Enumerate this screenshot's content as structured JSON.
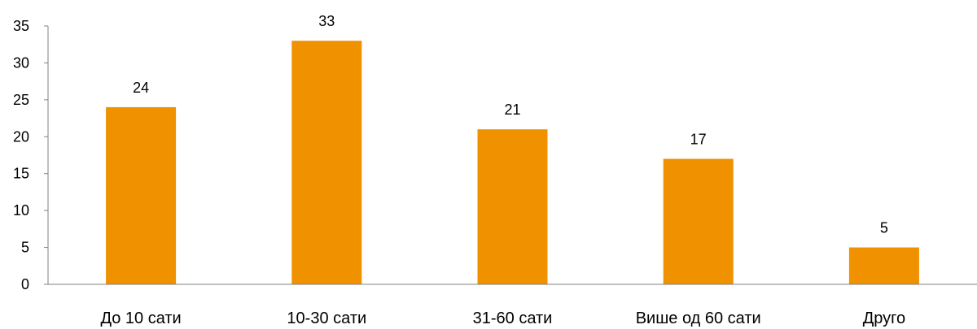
{
  "chart_data": {
    "type": "bar",
    "categories": [
      "До 10 сати",
      "10-30 сати",
      "31-60 сати",
      "Више од 60 сати",
      "Друго"
    ],
    "values": [
      24,
      33,
      21,
      17,
      5
    ],
    "data_labels": [
      "24",
      "33",
      "21",
      "17",
      "5"
    ],
    "ylim": [
      0,
      35
    ],
    "yticks": [
      0,
      5,
      10,
      15,
      20,
      25,
      30,
      35
    ],
    "ytick_labels": [
      "0",
      "5",
      "10",
      "15",
      "20",
      "25",
      "30",
      "35"
    ],
    "title": "",
    "xlabel": "",
    "ylabel": "",
    "grid": false,
    "legend": "none",
    "bar_color": "#F09100"
  }
}
